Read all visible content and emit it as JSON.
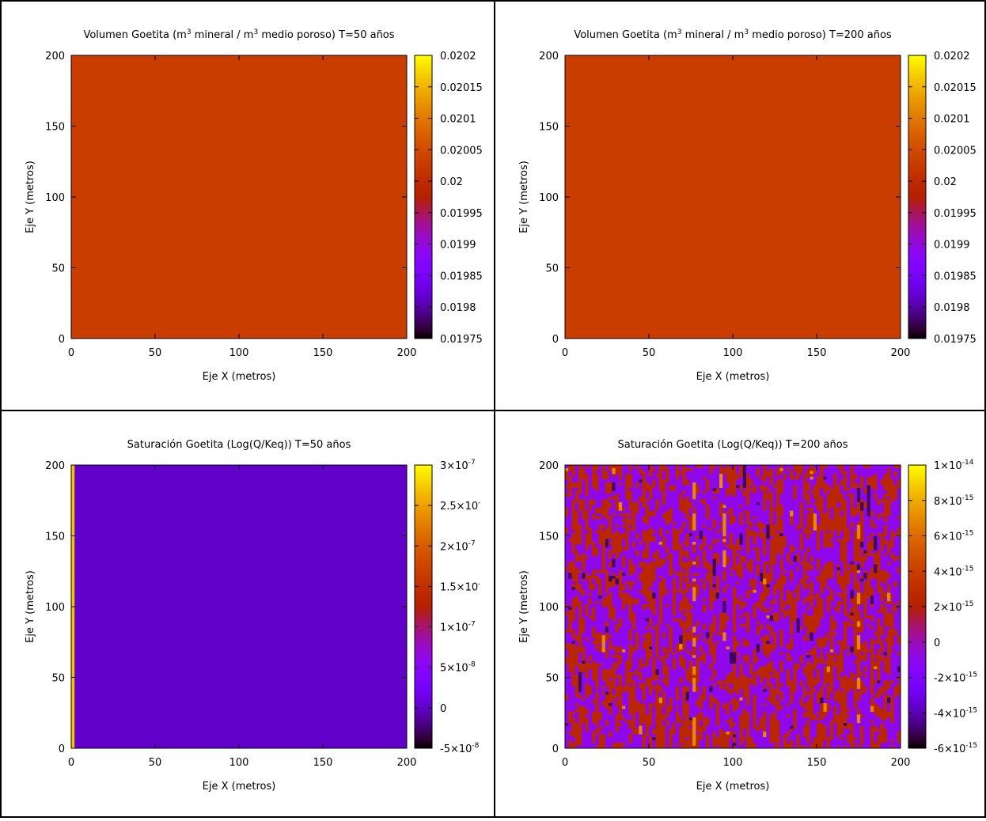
{
  "chart_data": [
    {
      "type": "heatmap",
      "title_parts": [
        "Volumen Goetita (m",
        "3",
        " mineral / m",
        "3",
        " medio poroso) T=50 años"
      ],
      "xlabel": "Eje X (metros)",
      "ylabel": "Eje Y (metros)",
      "xlim": [
        0,
        200
      ],
      "ylim": [
        0,
        200
      ],
      "x_ticks": [
        "0",
        "50",
        "100",
        "150",
        "200"
      ],
      "y_ticks": [
        "0",
        "50",
        "100",
        "150",
        "200"
      ],
      "colorbar": {
        "range": [
          0.01975,
          0.0202
        ],
        "ticks": [
          {
            "label": "0.0202",
            "exp": ""
          },
          {
            "label": "0.02015",
            "exp": ""
          },
          {
            "label": "0.0201",
            "exp": ""
          },
          {
            "label": "0.02005",
            "exp": ""
          },
          {
            "label": "0.02",
            "exp": ""
          },
          {
            "label": "0.01995",
            "exp": ""
          },
          {
            "label": "0.0199",
            "exp": ""
          },
          {
            "label": "0.01985",
            "exp": ""
          },
          {
            "label": "0.0198",
            "exp": ""
          },
          {
            "label": "0.01975",
            "exp": ""
          }
        ]
      },
      "field": {
        "pattern": "uniform",
        "value": 0.02003
      }
    },
    {
      "type": "heatmap",
      "title_parts": [
        "Volumen Goetita (m",
        "3",
        " mineral / m",
        "3",
        " medio poroso) T=200 años"
      ],
      "xlabel": "Eje X (metros)",
      "ylabel": "Eje Y (metros)",
      "xlim": [
        0,
        200
      ],
      "ylim": [
        0,
        200
      ],
      "x_ticks": [
        "0",
        "50",
        "100",
        "150",
        "200"
      ],
      "y_ticks": [
        "0",
        "50",
        "100",
        "150",
        "200"
      ],
      "colorbar": {
        "range": [
          0.01975,
          0.0202
        ],
        "ticks": [
          {
            "label": "0.0202",
            "exp": ""
          },
          {
            "label": "0.02015",
            "exp": ""
          },
          {
            "label": "0.0201",
            "exp": ""
          },
          {
            "label": "0.02005",
            "exp": ""
          },
          {
            "label": "0.02",
            "exp": ""
          },
          {
            "label": "0.01995",
            "exp": ""
          },
          {
            "label": "0.0199",
            "exp": ""
          },
          {
            "label": "0.01985",
            "exp": ""
          },
          {
            "label": "0.0198",
            "exp": ""
          },
          {
            "label": "0.01975",
            "exp": ""
          }
        ]
      },
      "field": {
        "pattern": "uniform",
        "value": 0.02003
      }
    },
    {
      "type": "heatmap",
      "title_parts": [
        "Saturación Goetita (Log(Q/Keq)) T=50 años"
      ],
      "xlabel": "Eje X (metros)",
      "ylabel": "Eje Y (metros)",
      "xlim": [
        0,
        200
      ],
      "ylim": [
        0,
        200
      ],
      "x_ticks": [
        "0",
        "50",
        "100",
        "150",
        "200"
      ],
      "y_ticks": [
        "0",
        "50",
        "100",
        "150",
        "200"
      ],
      "colorbar": {
        "range": [
          -5e-08,
          3e-07
        ],
        "ticks": [
          {
            "label": "3×10",
            "exp": "-7"
          },
          {
            "label": "2.5×10",
            "exp": "-"
          },
          {
            "label": "2×10",
            "exp": "-7"
          },
          {
            "label": "1.5×10",
            "exp": "-"
          },
          {
            "label": "1×10",
            "exp": "-7"
          },
          {
            "label": "5×10",
            "exp": "-8"
          },
          {
            "label": "0",
            "exp": ""
          },
          {
            "label": "-5×10",
            "exp": "-8"
          }
        ]
      },
      "field": {
        "pattern": "uniform-with-left-strip",
        "value": 1e-09,
        "strip_value": 2.7e-07,
        "strip_x": [
          0,
          2
        ]
      }
    },
    {
      "type": "heatmap",
      "title_parts": [
        "Saturación Goetita (Log(Q/Keq)) T=200 años"
      ],
      "xlabel": "Eje X (metros)",
      "ylabel": "Eje Y (metros)",
      "xlim": [
        0,
        200
      ],
      "ylim": [
        0,
        200
      ],
      "x_ticks": [
        "0",
        "50",
        "100",
        "150",
        "200"
      ],
      "y_ticks": [
        "0",
        "50",
        "100",
        "150",
        "200"
      ],
      "colorbar": {
        "range": [
          -6e-15,
          1e-14
        ],
        "ticks": [
          {
            "label": "1×10",
            "exp": "-14"
          },
          {
            "label": "8×10",
            "exp": "-15"
          },
          {
            "label": "6×10",
            "exp": "-15"
          },
          {
            "label": "4×10",
            "exp": "-15"
          },
          {
            "label": "2×10",
            "exp": "-15"
          },
          {
            "label": "0",
            "exp": ""
          },
          {
            "label": "-2×10",
            "exp": "-15"
          },
          {
            "label": "-4×10",
            "exp": "-15"
          },
          {
            "label": "-6×10",
            "exp": "-15"
          }
        ]
      },
      "field": {
        "pattern": "noisy",
        "cells": 100,
        "values": [
          -1e-15,
          2.5e-15,
          -5e-15,
          7e-15
        ],
        "weights": [
          0.55,
          0.42,
          0.02,
          0.01
        ]
      }
    }
  ]
}
